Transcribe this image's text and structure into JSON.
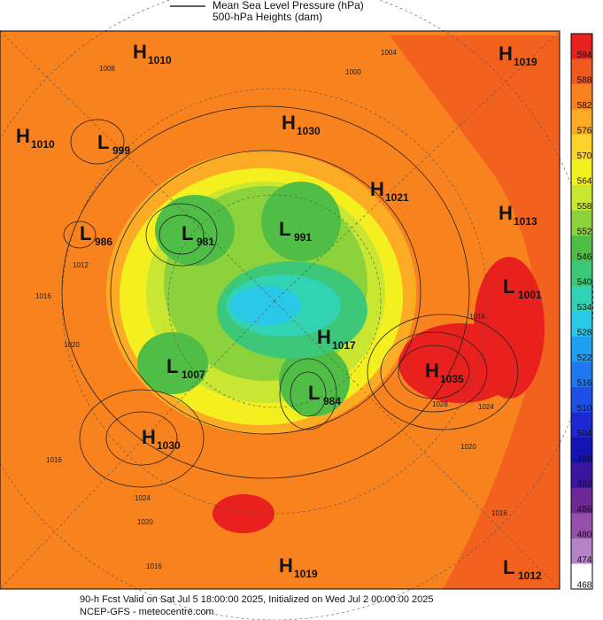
{
  "legend": [
    "Mean Sea Level Pressure (hPa)",
    "500-hPa Heights (dam)"
  ],
  "centers": [
    {
      "letter": "H",
      "value": 1010
    },
    {
      "letter": "H",
      "value": 1019
    },
    {
      "letter": "H",
      "value": 1010
    },
    {
      "letter": "L",
      "value": 999
    },
    {
      "letter": "H",
      "value": 1030
    },
    {
      "letter": "H",
      "value": 1021
    },
    {
      "letter": "H",
      "value": 1013
    },
    {
      "letter": "L",
      "value": 986
    },
    {
      "letter": "L",
      "value": 981
    },
    {
      "letter": "L",
      "value": 991
    },
    {
      "letter": "L",
      "value": 1001
    },
    {
      "letter": "H",
      "value": 1017
    },
    {
      "letter": "H",
      "value": 1035
    },
    {
      "letter": "L",
      "value": 1007
    },
    {
      "letter": "L",
      "value": 984
    },
    {
      "letter": "H",
      "value": 1030
    },
    {
      "letter": "H",
      "value": 1019
    },
    {
      "letter": "L",
      "value": 1012
    }
  ],
  "isobar_labels": [
    1008,
    1000,
    1004,
    1012,
    1016,
    1020,
    1028,
    1024,
    1020,
    1016,
    1024,
    1020,
    1016,
    1016,
    1016
  ],
  "colorbar": {
    "ticks": [
      594,
      588,
      582,
      576,
      570,
      564,
      558,
      552,
      546,
      540,
      534,
      528,
      522,
      516,
      510,
      504,
      498,
      492,
      486,
      480,
      474,
      468
    ],
    "colors": [
      "#e8201e",
      "#f05a1e",
      "#f7821e",
      "#fbac24",
      "#fdd22a",
      "#f4f020",
      "#c8e632",
      "#8cd23c",
      "#50be46",
      "#3cc878",
      "#32d2b4",
      "#28c8e6",
      "#1ea0f0",
      "#1e78f0",
      "#1e50e6",
      "#1e28d2",
      "#1414b4",
      "#3c14a0",
      "#6e2896",
      "#9650aa",
      "#b482c8",
      "#ffffff"
    ]
  },
  "footer": [
    "90-h Fcst Valid on Sat Jul  5 18:00:00 2025, Initialized on Wed Jul  2 00:00:00 2025",
    "NCEP-GFS  - meteocentre.com"
  ]
}
